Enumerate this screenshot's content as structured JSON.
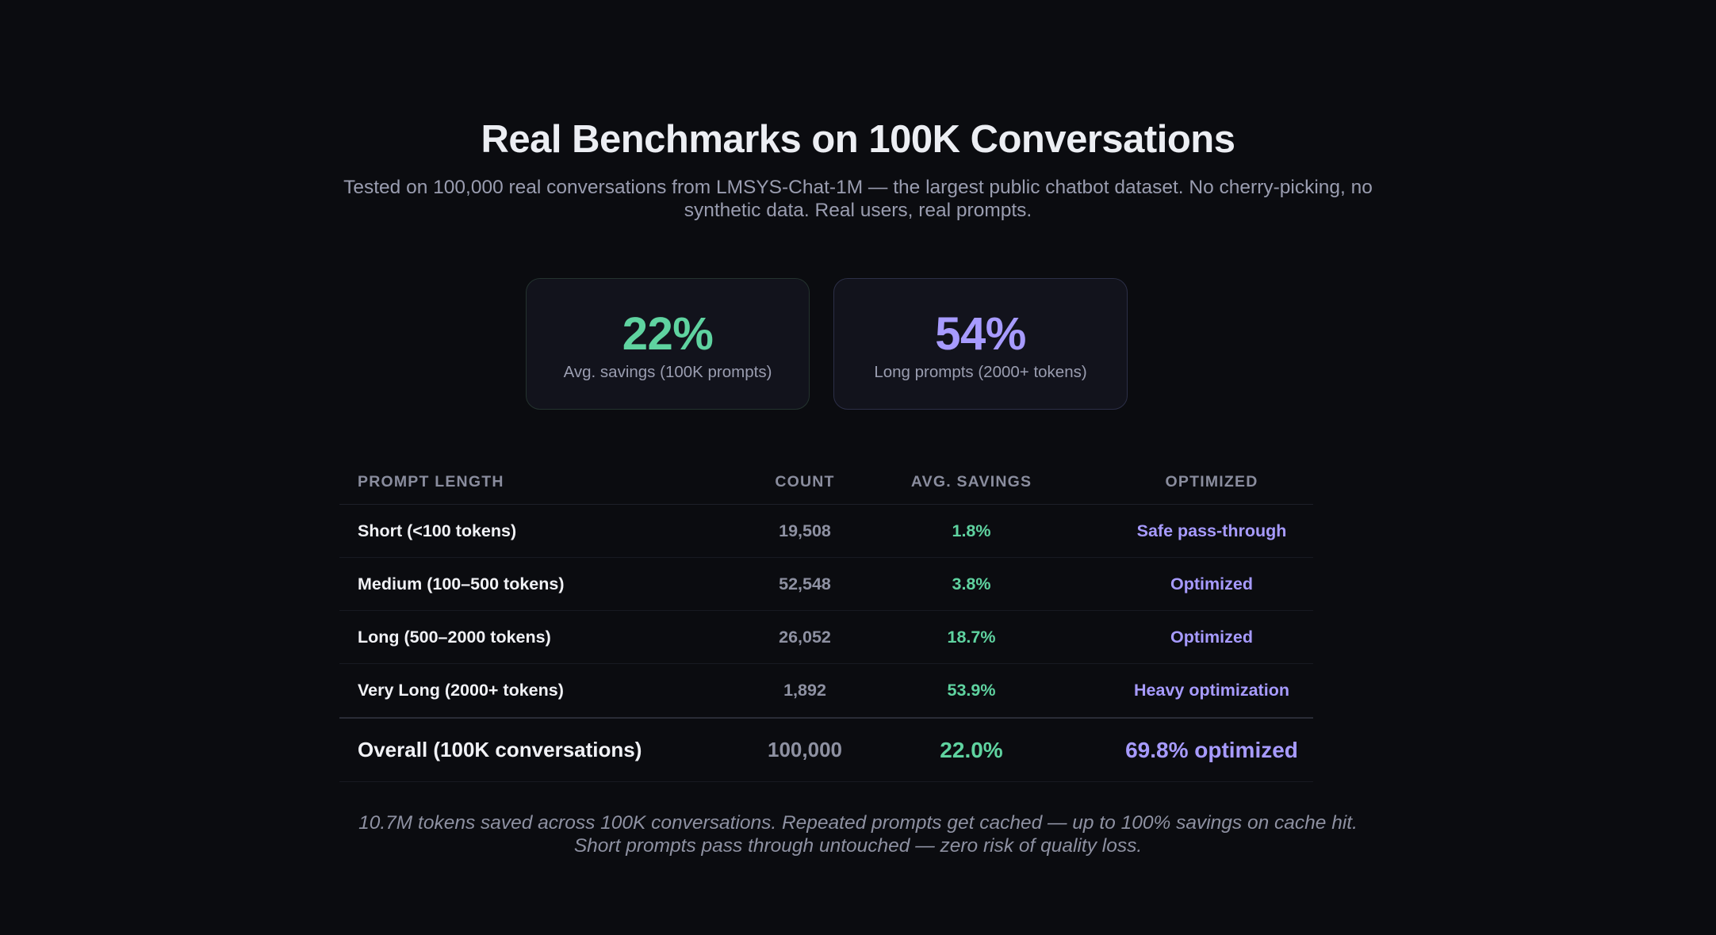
{
  "header": {
    "title": "Real Benchmarks on 100K Conversations",
    "subtitle": "Tested on 100,000 real conversations from LMSYS-Chat-1M — the largest public chatbot dataset. No cherry-picking, no synthetic data. Real users, real prompts."
  },
  "stats": [
    {
      "value": "22%",
      "label": "Avg. savings (100K prompts)",
      "color": "#5fd3a0"
    },
    {
      "value": "54%",
      "label": "Long prompts (2000+ tokens)",
      "color": "#a79bff"
    }
  ],
  "table": {
    "headers": [
      "PROMPT LENGTH",
      "COUNT",
      "AVG. SAVINGS",
      "OPTIMIZED"
    ],
    "rows": [
      {
        "length": "Short (<100 tokens)",
        "count": "19,508",
        "savings": "1.8%",
        "optimized": "Safe pass-through"
      },
      {
        "length": "Medium (100–500 tokens)",
        "count": "52,548",
        "savings": "3.8%",
        "optimized": "Optimized"
      },
      {
        "length": "Long (500–2000 tokens)",
        "count": "26,052",
        "savings": "18.7%",
        "optimized": "Optimized"
      },
      {
        "length": "Very Long (2000+ tokens)",
        "count": "1,892",
        "savings": "53.9%",
        "optimized": "Heavy optimization"
      }
    ],
    "total": {
      "length": "Overall (100K conversations)",
      "count": "100,000",
      "savings": "22.0%",
      "optimized": "69.8% optimized"
    }
  },
  "footnote": "10.7M tokens saved across 100K conversations. Repeated prompts get cached — up to 100% savings on cache hit. Short prompts pass through untouched — zero risk of quality loss.",
  "colors": {
    "background": "#0b0c10",
    "accent_green": "#5fd3a0",
    "accent_purple": "#a79bff"
  }
}
